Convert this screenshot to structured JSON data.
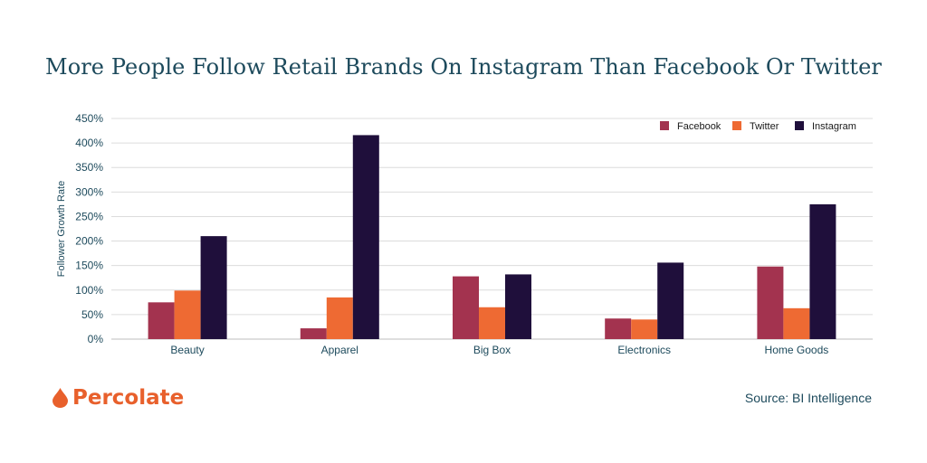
{
  "chart_data": {
    "type": "bar",
    "title": "More People Follow Retail Brands On Instagram Than Facebook Or Twitter",
    "ylabel": "Follower Growth Rate",
    "xlabel": "",
    "categories": [
      "Beauty",
      "Apparel",
      "Big Box",
      "Electronics",
      "Home Goods"
    ],
    "series": [
      {
        "name": "Facebook",
        "color": "#a3334f",
        "values": [
          75,
          22,
          128,
          42,
          148
        ]
      },
      {
        "name": "Twitter",
        "color": "#ee6a33",
        "values": [
          99,
          85,
          65,
          40,
          63
        ]
      },
      {
        "name": "Instagram",
        "color": "#1f0f3b",
        "values": [
          210,
          416,
          132,
          156,
          275
        ]
      }
    ],
    "ylim": [
      0,
      450
    ],
    "yticks": [
      "0%",
      "50%",
      "100%",
      "150%",
      "200%",
      "250%",
      "300%",
      "350%",
      "400%",
      "450%"
    ],
    "grid": true,
    "legend_position": "top-right"
  },
  "brand": {
    "name": "Percolate",
    "icon": "drop-icon"
  },
  "source": "Source: BI Intelligence",
  "colors": {
    "title": "#1d4a5c",
    "brand": "#e8602c",
    "grid": "#dcdcdc"
  }
}
